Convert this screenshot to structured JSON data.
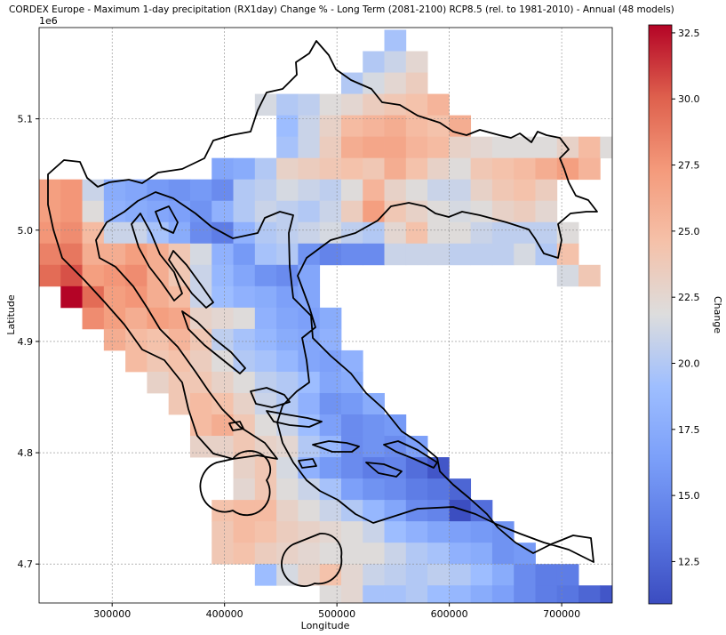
{
  "title": "CORDEX Europe - Maximum 1-day precipitation (RX1day) Change % - Long Term (2081-2100) RCP8.5 (rel. to 1981-2010) - Annual (48 models)",
  "chart_data": {
    "type": "heatmap",
    "xlabel": "Longitude",
    "ylabel": "Latitude",
    "y_offset_label": "1e6",
    "xlim": [
      235000,
      745000
    ],
    "ylim": [
      4665000,
      5182000
    ],
    "x_ticks": [
      300000,
      400000,
      500000,
      600000,
      700000
    ],
    "x_tick_labels": [
      "300000",
      "400000",
      "500000",
      "600000",
      "700000"
    ],
    "y_ticks": [
      4700000,
      4800000,
      4900000,
      5000000,
      5100000
    ],
    "y_tick_labels": [
      "4.7",
      "4.8",
      "4.9",
      "5.0",
      "5.1"
    ],
    "grid": true,
    "colorbar": {
      "label": "Change",
      "range": [
        10.9,
        32.8
      ],
      "ticks": [
        12.5,
        15.0,
        17.5,
        20.0,
        22.5,
        25.0,
        27.5,
        30.0,
        32.5
      ],
      "tick_labels": [
        "12.5",
        "15.0",
        "17.5",
        "20.0",
        "22.5",
        "25.0",
        "27.5",
        "30.0",
        "32.5"
      ],
      "colormap": "coolwarm"
    },
    "cell_size": [
      19200,
      19200
    ],
    "grid_origin": [
      235000,
      4680000
    ],
    "rows_from_north": [
      {
        "row": 0,
        "start_col": 16,
        "values": [
          19.5
        ]
      },
      {
        "row": 1,
        "start_col": 15,
        "values": [
          20,
          21,
          22.5
        ]
      },
      {
        "row": 2,
        "start_col": 14,
        "values": [
          20,
          21.5,
          22.5,
          23.5
        ]
      },
      {
        "row": 3,
        "start_col": 10,
        "values": [
          21.5,
          20,
          20.5,
          22,
          22.5,
          23.5,
          24,
          24.5,
          25.5
        ]
      },
      {
        "row": 4,
        "start_col": 11,
        "values": [
          19,
          21,
          23,
          25,
          25.5,
          26,
          25,
          24.5,
          26
        ]
      },
      {
        "row": 5,
        "start_col": 11,
        "values": [
          19.5,
          21,
          23.5,
          26,
          26.5,
          26.5,
          25.5,
          25,
          23,
          22.5,
          22,
          22,
          22,
          23,
          25,
          22
        ]
      },
      {
        "row": 6,
        "start_col": 8,
        "values": [
          17,
          17.5,
          20,
          23,
          23.5,
          24,
          24.5,
          24,
          26,
          24.5,
          23,
          22,
          24,
          24.5,
          25,
          26,
          27,
          25.5
        ]
      },
      {
        "row": 7,
        "start_col": 0,
        "values": [
          27,
          27.5,
          21,
          17.5,
          17,
          16,
          15.5,
          16,
          15,
          20,
          20.5,
          21.5,
          21,
          20.5,
          22,
          25.5,
          23,
          22,
          21,
          21,
          23,
          24,
          24.5,
          23.5
        ]
      },
      {
        "row": 8,
        "start_col": 0,
        "values": [
          27,
          27.5,
          22,
          18,
          17.5,
          17,
          16.5,
          15.5,
          18,
          20,
          21,
          20.5,
          20,
          21,
          23.5,
          27,
          24,
          23,
          22,
          21.5,
          22,
          23,
          23.5,
          22.5
        ]
      },
      {
        "row": 9,
        "start_col": 0,
        "values": [
          27.5,
          28,
          25,
          21,
          21,
          19.5,
          17.5,
          15,
          14,
          18,
          20,
          20.5,
          21,
          21.5,
          20.5,
          20,
          22.5,
          24.5,
          22,
          22,
          21,
          20.5,
          20.5,
          20.5,
          22
        ]
      },
      {
        "row": 10,
        "start_col": 0,
        "values": [
          28.5,
          29,
          26,
          26,
          27,
          26,
          24,
          21.5,
          18,
          16,
          19.5,
          20,
          15.5,
          14.5,
          15
        ]
      },
      {
        "row": 10,
        "start_col": 15,
        "values": [
          15,
          21,
          21,
          21,
          20.5,
          20.5,
          20.5,
          21.5,
          20,
          24.5
        ]
      },
      {
        "row": 11,
        "start_col": 0,
        "values": [
          29.5,
          30.5,
          27,
          27.5,
          28,
          26,
          24,
          21,
          18.5,
          17,
          15.5,
          15,
          17
        ]
      },
      {
        "row": 11,
        "start_col": 24,
        "values": [
          21.5,
          24
        ]
      },
      {
        "row": 12,
        "start_col": 1,
        "values": [
          32.8,
          29.5,
          27,
          27.5,
          26,
          25,
          21,
          19,
          18,
          17.5,
          16.5,
          17
        ]
      },
      {
        "row": 13,
        "start_col": 2,
        "values": [
          28,
          27,
          26,
          27,
          26.5,
          23,
          22.5,
          22,
          18,
          17,
          16.5,
          17.5
        ]
      },
      {
        "row": 14,
        "start_col": 3,
        "values": [
          26,
          25,
          24.5,
          25.5,
          24,
          20.5,
          19.5,
          18.5,
          17.5,
          17,
          18
        ]
      },
      {
        "row": 15,
        "start_col": 4,
        "values": [
          25,
          24,
          24.5,
          23.5,
          22,
          20,
          19.5,
          18.5,
          17,
          16.5,
          18
        ]
      },
      {
        "row": 16,
        "start_col": 5,
        "values": [
          23,
          24,
          24,
          23,
          22,
          20.5,
          20,
          19,
          17,
          17.5
        ]
      },
      {
        "row": 17,
        "start_col": 6,
        "values": [
          24,
          25,
          24.5,
          23,
          21,
          20,
          18,
          15.5,
          16,
          17.5
        ]
      },
      {
        "row": 18,
        "start_col": 7,
        "values": [
          25,
          26,
          24,
          22,
          21,
          19,
          16.5,
          15,
          15.5,
          16
        ]
      },
      {
        "row": 19,
        "start_col": 7,
        "values": [
          23,
          23,
          24,
          23,
          22.5,
          20,
          18.5,
          15,
          15.5,
          15,
          16.5
        ]
      },
      {
        "row": 20,
        "start_col": 9,
        "values": [
          23,
          24,
          21.5,
          18,
          16,
          15,
          14,
          14.5,
          13,
          11.5
        ]
      },
      {
        "row": 21,
        "start_col": 9,
        "values": [
          22.5,
          24,
          22,
          21,
          19.5,
          16.5,
          15.5,
          15,
          14,
          13.5,
          12.5
        ]
      },
      {
        "row": 22,
        "start_col": 8,
        "values": [
          24.5,
          25,
          25,
          23,
          22,
          21,
          20,
          18.5,
          17,
          15,
          14.5,
          11,
          13
        ]
      },
      {
        "row": 23,
        "start_col": 8,
        "values": [
          24,
          25,
          24.5,
          23.5,
          23,
          22.5,
          22,
          21,
          19,
          18,
          17,
          16.5,
          16,
          15.5
        ]
      },
      {
        "row": 24,
        "start_col": 8,
        "values": [
          24,
          24.5,
          23.5,
          23,
          22.5,
          22,
          22,
          22,
          21,
          20,
          19.5,
          18,
          17.5,
          15.5,
          16
        ]
      },
      {
        "row": 25,
        "start_col": 10,
        "values": [
          19,
          21.5,
          23,
          24.5,
          22.5,
          21,
          20.5,
          20,
          20.5,
          20,
          19,
          17.5,
          15,
          14,
          14
        ]
      },
      {
        "row": 26,
        "start_col": 13,
        "values": [
          22,
          22.5,
          19.5,
          19.5,
          20,
          19,
          18.5,
          17.5,
          16.5,
          15,
          14,
          13.5,
          12.5,
          11.5
        ]
      },
      {
        "row": 27,
        "start_col": 16,
        "values": [
          18.5,
          18.5
        ]
      },
      {
        "row": 27,
        "start_col": 19,
        "values": [
          15,
          15.5,
          16,
          16,
          15,
          14.5,
          13
        ]
      },
      {
        "row": 28,
        "start_col": 16,
        "values": [
          18,
          18.5
        ]
      },
      {
        "row": 28,
        "start_col": 21,
        "values": [
          15.5,
          15,
          14.5,
          14,
          13
        ]
      }
    ]
  }
}
